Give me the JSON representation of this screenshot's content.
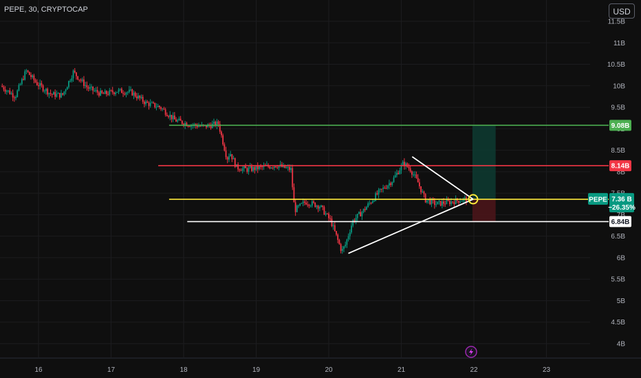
{
  "header": {
    "title": "PEPE, 30, CRYPTOCAP",
    "currency_button": "USD"
  },
  "chart_data": {
    "type": "candlestick",
    "symbol": "PEPE",
    "interval": "30",
    "source": "CRYPTOCAP",
    "y_axis": {
      "ticks": [
        "4B",
        "4.5B",
        "5B",
        "5.5B",
        "6B",
        "6.5B",
        "7B",
        "7.5B",
        "8B",
        "8.5B",
        "9B",
        "9.5B",
        "10B",
        "10.5B",
        "11B",
        "11.5B"
      ],
      "ylim": [
        3.7,
        11.6
      ]
    },
    "x_axis": {
      "ticks": [
        "16",
        "17",
        "18",
        "19",
        "20",
        "21",
        "22",
        "23"
      ],
      "xlim": [
        15.5,
        23.4
      ]
    },
    "price_series": {
      "x": [
        15.5,
        15.7,
        15.85,
        16.0,
        16.2,
        16.35,
        16.5,
        16.7,
        16.9,
        17.1,
        17.3,
        17.5,
        17.7,
        17.9,
        18.1,
        18.3,
        18.5,
        18.62,
        18.66,
        18.75,
        18.9,
        19.1,
        19.3,
        19.5,
        19.55,
        19.7,
        19.9,
        20.05,
        20.2,
        20.25,
        20.35,
        20.5,
        20.7,
        20.9,
        21.05,
        21.15,
        21.25,
        21.35,
        21.5,
        21.7,
        21.9
      ],
      "y": [
        10.0,
        9.75,
        10.35,
        10.05,
        9.8,
        9.78,
        10.32,
        9.95,
        9.8,
        9.88,
        9.85,
        9.6,
        9.5,
        9.2,
        9.1,
        9.05,
        9.12,
        8.3,
        8.45,
        8.1,
        8.05,
        8.1,
        8.15,
        8.05,
        7.1,
        7.3,
        7.2,
        6.85,
        6.15,
        6.3,
        6.85,
        7.1,
        7.5,
        7.8,
        8.2,
        8.05,
        7.75,
        7.35,
        7.25,
        7.3,
        7.36
      ]
    },
    "levels": [
      {
        "name": "green-level",
        "value": 9.08,
        "label": "9.08B",
        "color": "#4caf50",
        "x_start": 17.8
      },
      {
        "name": "red-level",
        "value": 8.14,
        "label": "8.14B",
        "color": "#f23645",
        "x_start": 17.65
      },
      {
        "name": "yellow-level",
        "value": 7.36,
        "label": "7.36B",
        "color": "#ffeb3b",
        "x_start": 17.8
      },
      {
        "name": "white-level",
        "value": 6.84,
        "label": "6.84B",
        "color": "#ffffff",
        "x_start": 18.05
      }
    ],
    "triangle": {
      "upper": [
        [
          21.15,
          8.35
        ],
        [
          21.99,
          7.36
        ]
      ],
      "lower": [
        [
          20.27,
          6.1
        ],
        [
          21.99,
          7.36
        ]
      ],
      "apex_marker": [
        21.99,
        7.36
      ]
    },
    "position_box": {
      "x_start": 21.98,
      "x_end": 22.3,
      "entry": 7.36,
      "target": 9.08,
      "stop": 6.84,
      "profit_color": "#0d3b31",
      "loss_color": "#4a1519"
    },
    "last_price": {
      "symbol_label": "PEPE",
      "value_label": "7.36 B",
      "change_label": "−26.35%",
      "color": "#089981"
    },
    "colors": {
      "up": "#089981",
      "down": "#f23645",
      "background": "#0f0f0f",
      "grid": "#1c1c1f"
    }
  }
}
